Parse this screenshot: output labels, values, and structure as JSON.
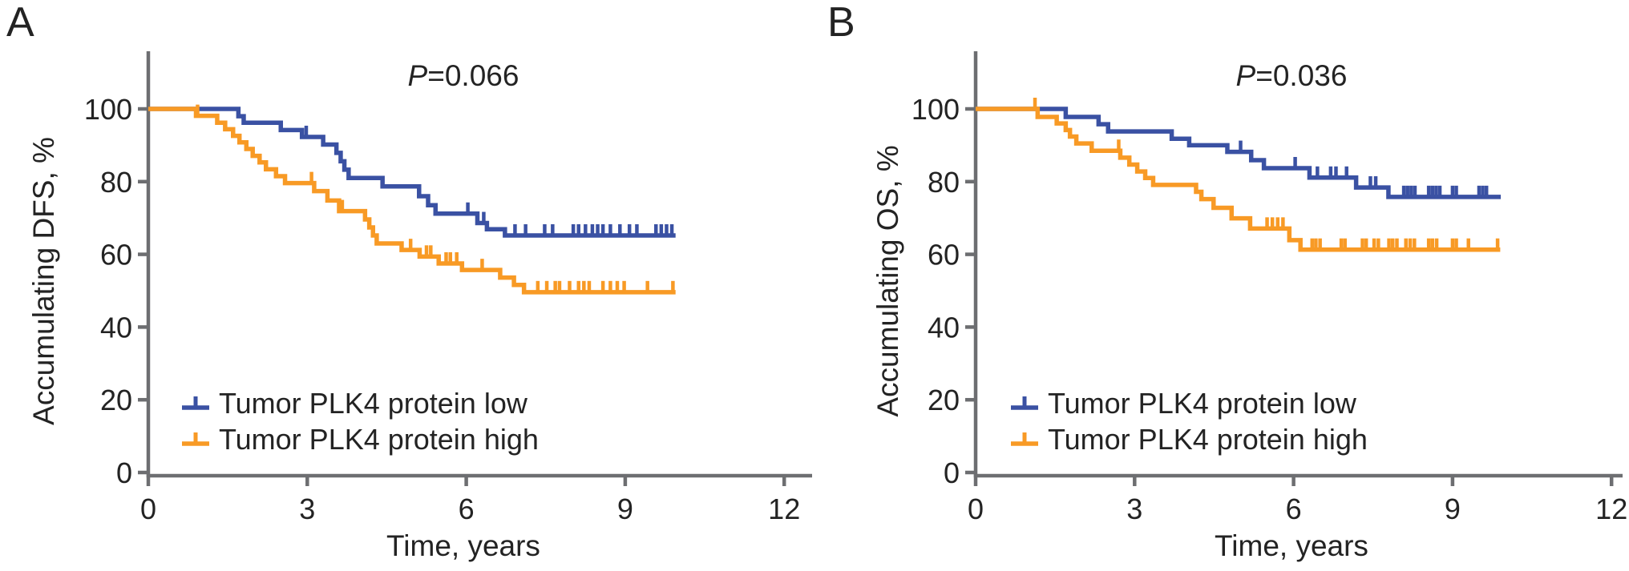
{
  "figure": {
    "background": "#ffffff",
    "axis_color": "#6D6E71",
    "text_color": "#232323"
  },
  "chart_data": [
    {
      "type": "line",
      "subtype": "kaplan-meier-step",
      "panel": "A",
      "p_prefix": "P",
      "p_value": "=0.066",
      "ylabel": "Accumulating DFS, %",
      "xlabel": "Time, years",
      "xlim": [
        0,
        12
      ],
      "ylim": [
        0,
        100
      ],
      "x_ticks": [
        0,
        3,
        6,
        9,
        12
      ],
      "y_ticks": [
        0,
        20,
        40,
        60,
        80,
        100
      ],
      "grid": "off",
      "legend_position": "lower-left",
      "series": [
        {
          "name": "Tumor PLK4 protein low",
          "color": "#3A51A3",
          "end": 9.95,
          "steps": [
            [
              0,
              100
            ],
            [
              1.7,
              98.0
            ],
            [
              1.8,
              96.2
            ],
            [
              2.5,
              94.2
            ],
            [
              2.9,
              92.3
            ],
            [
              3.3,
              90.2
            ],
            [
              3.55,
              87.9
            ],
            [
              3.63,
              85.6
            ],
            [
              3.7,
              83.3
            ],
            [
              3.78,
              81.0
            ],
            [
              4.42,
              78.7
            ],
            [
              5.11,
              76.0
            ],
            [
              5.28,
              73.5
            ],
            [
              5.42,
              71.2
            ],
            [
              6.21,
              68.6
            ],
            [
              6.39,
              66.9
            ],
            [
              6.73,
              65.2
            ]
          ],
          "censors": [
            [
              2.98,
              92.3
            ],
            [
              6.03,
              71.2
            ],
            [
              6.33,
              68.6
            ],
            [
              6.92,
              65.2
            ],
            [
              7.12,
              65.2
            ],
            [
              7.48,
              65.2
            ],
            [
              7.63,
              65.2
            ],
            [
              8.02,
              65.2
            ],
            [
              8.12,
              65.2
            ],
            [
              8.25,
              65.2
            ],
            [
              8.38,
              65.2
            ],
            [
              8.48,
              65.2
            ],
            [
              8.58,
              65.2
            ],
            [
              8.72,
              65.2
            ],
            [
              8.9,
              65.2
            ],
            [
              9.08,
              65.2
            ],
            [
              9.22,
              65.2
            ],
            [
              9.58,
              65.2
            ],
            [
              9.68,
              65.2
            ],
            [
              9.78,
              65.2
            ],
            [
              9.88,
              65.2
            ]
          ]
        },
        {
          "name": "Tumor PLK4 protein high",
          "color": "#F89A25",
          "end": 9.95,
          "steps": [
            [
              0,
              100
            ],
            [
              0.9,
              98.1
            ],
            [
              1.3,
              96.2
            ],
            [
              1.45,
              94.4
            ],
            [
              1.6,
              92.6
            ],
            [
              1.72,
              90.8
            ],
            [
              1.85,
              89.0
            ],
            [
              1.97,
              87.1
            ],
            [
              2.1,
              85.3
            ],
            [
              2.22,
              83.4
            ],
            [
              2.41,
              81.5
            ],
            [
              2.58,
              79.6
            ],
            [
              3.13,
              77.4
            ],
            [
              3.38,
              74.8
            ],
            [
              3.6,
              71.9
            ],
            [
              4.09,
              69.6
            ],
            [
              4.17,
              67.4
            ],
            [
              4.24,
              65.2
            ],
            [
              4.31,
              63.0
            ],
            [
              4.78,
              61.2
            ],
            [
              5.12,
              59.4
            ],
            [
              5.48,
              57.5
            ],
            [
              5.92,
              55.7
            ],
            [
              6.64,
              53.6
            ],
            [
              6.9,
              51.6
            ],
            [
              7.09,
              49.6
            ]
          ],
          "censors": [
            [
              0.93,
              98.1
            ],
            [
              3.08,
              79.6
            ],
            [
              3.66,
              71.9
            ],
            [
              4.95,
              61.2
            ],
            [
              5.25,
              59.4
            ],
            [
              5.33,
              59.4
            ],
            [
              5.62,
              57.5
            ],
            [
              5.7,
              57.5
            ],
            [
              5.82,
              57.5
            ],
            [
              6.3,
              55.7
            ],
            [
              7.35,
              49.6
            ],
            [
              7.52,
              49.6
            ],
            [
              7.68,
              49.6
            ],
            [
              7.76,
              49.6
            ],
            [
              7.95,
              49.6
            ],
            [
              8.12,
              49.6
            ],
            [
              8.22,
              49.6
            ],
            [
              8.32,
              49.6
            ],
            [
              8.58,
              49.6
            ],
            [
              8.72,
              49.6
            ],
            [
              8.85,
              49.6
            ],
            [
              8.98,
              49.6
            ],
            [
              9.42,
              49.6
            ],
            [
              9.9,
              49.6
            ]
          ]
        }
      ]
    },
    {
      "type": "line",
      "subtype": "kaplan-meier-step",
      "panel": "B",
      "p_prefix": "P",
      "p_value": "=0.036",
      "ylabel": "Accumulating OS, %",
      "xlabel": "Time, years",
      "xlim": [
        0,
        12
      ],
      "ylim": [
        0,
        100
      ],
      "x_ticks": [
        0,
        3,
        6,
        9,
        12
      ],
      "y_ticks": [
        0,
        20,
        40,
        60,
        80,
        100
      ],
      "grid": "off",
      "legend_position": "lower-left",
      "series": [
        {
          "name": "Tumor PLK4 protein low",
          "color": "#3A51A3",
          "end": 9.91,
          "steps": [
            [
              0,
              100
            ],
            [
              1.7,
              97.8
            ],
            [
              2.32,
              95.8
            ],
            [
              2.5,
              93.8
            ],
            [
              3.7,
              91.8
            ],
            [
              4.03,
              90.0
            ],
            [
              4.75,
              88.2
            ],
            [
              5.2,
              85.9
            ],
            [
              5.44,
              83.7
            ],
            [
              6.3,
              81.1
            ],
            [
              7.18,
              78.4
            ],
            [
              7.79,
              75.8
            ]
          ],
          "censors": [
            [
              5.0,
              88.2
            ],
            [
              6.03,
              83.7
            ],
            [
              6.45,
              81.1
            ],
            [
              6.7,
              81.1
            ],
            [
              6.8,
              81.1
            ],
            [
              7.0,
              81.1
            ],
            [
              7.45,
              78.4
            ],
            [
              7.55,
              78.4
            ],
            [
              8.08,
              75.8
            ],
            [
              8.15,
              75.8
            ],
            [
              8.22,
              75.8
            ],
            [
              8.29,
              75.8
            ],
            [
              8.55,
              75.8
            ],
            [
              8.62,
              75.8
            ],
            [
              8.69,
              75.8
            ],
            [
              8.76,
              75.8
            ],
            [
              9.0,
              75.8
            ],
            [
              9.07,
              75.8
            ],
            [
              9.5,
              75.8
            ],
            [
              9.57,
              75.8
            ],
            [
              9.64,
              75.8
            ]
          ]
        },
        {
          "name": "Tumor PLK4 protein high",
          "color": "#F89A25",
          "end": 9.9,
          "steps": [
            [
              0,
              100
            ],
            [
              1.17,
              97.8
            ],
            [
              1.53,
              96.0
            ],
            [
              1.7,
              94.2
            ],
            [
              1.78,
              92.4
            ],
            [
              1.9,
              90.5
            ],
            [
              2.19,
              88.5
            ],
            [
              2.73,
              86.6
            ],
            [
              2.9,
              84.7
            ],
            [
              3.05,
              82.8
            ],
            [
              3.2,
              81.0
            ],
            [
              3.35,
              79.1
            ],
            [
              4.16,
              77.2
            ],
            [
              4.26,
              75.2
            ],
            [
              4.49,
              72.8
            ],
            [
              4.83,
              69.9
            ],
            [
              5.18,
              67.1
            ],
            [
              5.92,
              63.9
            ],
            [
              6.13,
              61.3
            ]
          ],
          "censors": [
            [
              1.12,
              100
            ],
            [
              2.7,
              88.5
            ],
            [
              5.5,
              67.1
            ],
            [
              5.6,
              67.1
            ],
            [
              5.7,
              67.1
            ],
            [
              5.8,
              67.1
            ],
            [
              6.35,
              61.3
            ],
            [
              6.42,
              61.3
            ],
            [
              6.5,
              61.3
            ],
            [
              6.9,
              61.3
            ],
            [
              6.97,
              61.3
            ],
            [
              7.3,
              61.3
            ],
            [
              7.37,
              61.3
            ],
            [
              7.52,
              61.3
            ],
            [
              7.6,
              61.3
            ],
            [
              7.8,
              61.3
            ],
            [
              7.87,
              61.3
            ],
            [
              7.95,
              61.3
            ],
            [
              8.12,
              61.3
            ],
            [
              8.2,
              61.3
            ],
            [
              8.28,
              61.3
            ],
            [
              8.55,
              61.3
            ],
            [
              8.62,
              61.3
            ],
            [
              8.7,
              61.3
            ],
            [
              9.0,
              61.3
            ],
            [
              9.07,
              61.3
            ],
            [
              9.3,
              61.3
            ],
            [
              9.85,
              61.3
            ]
          ]
        }
      ]
    }
  ]
}
